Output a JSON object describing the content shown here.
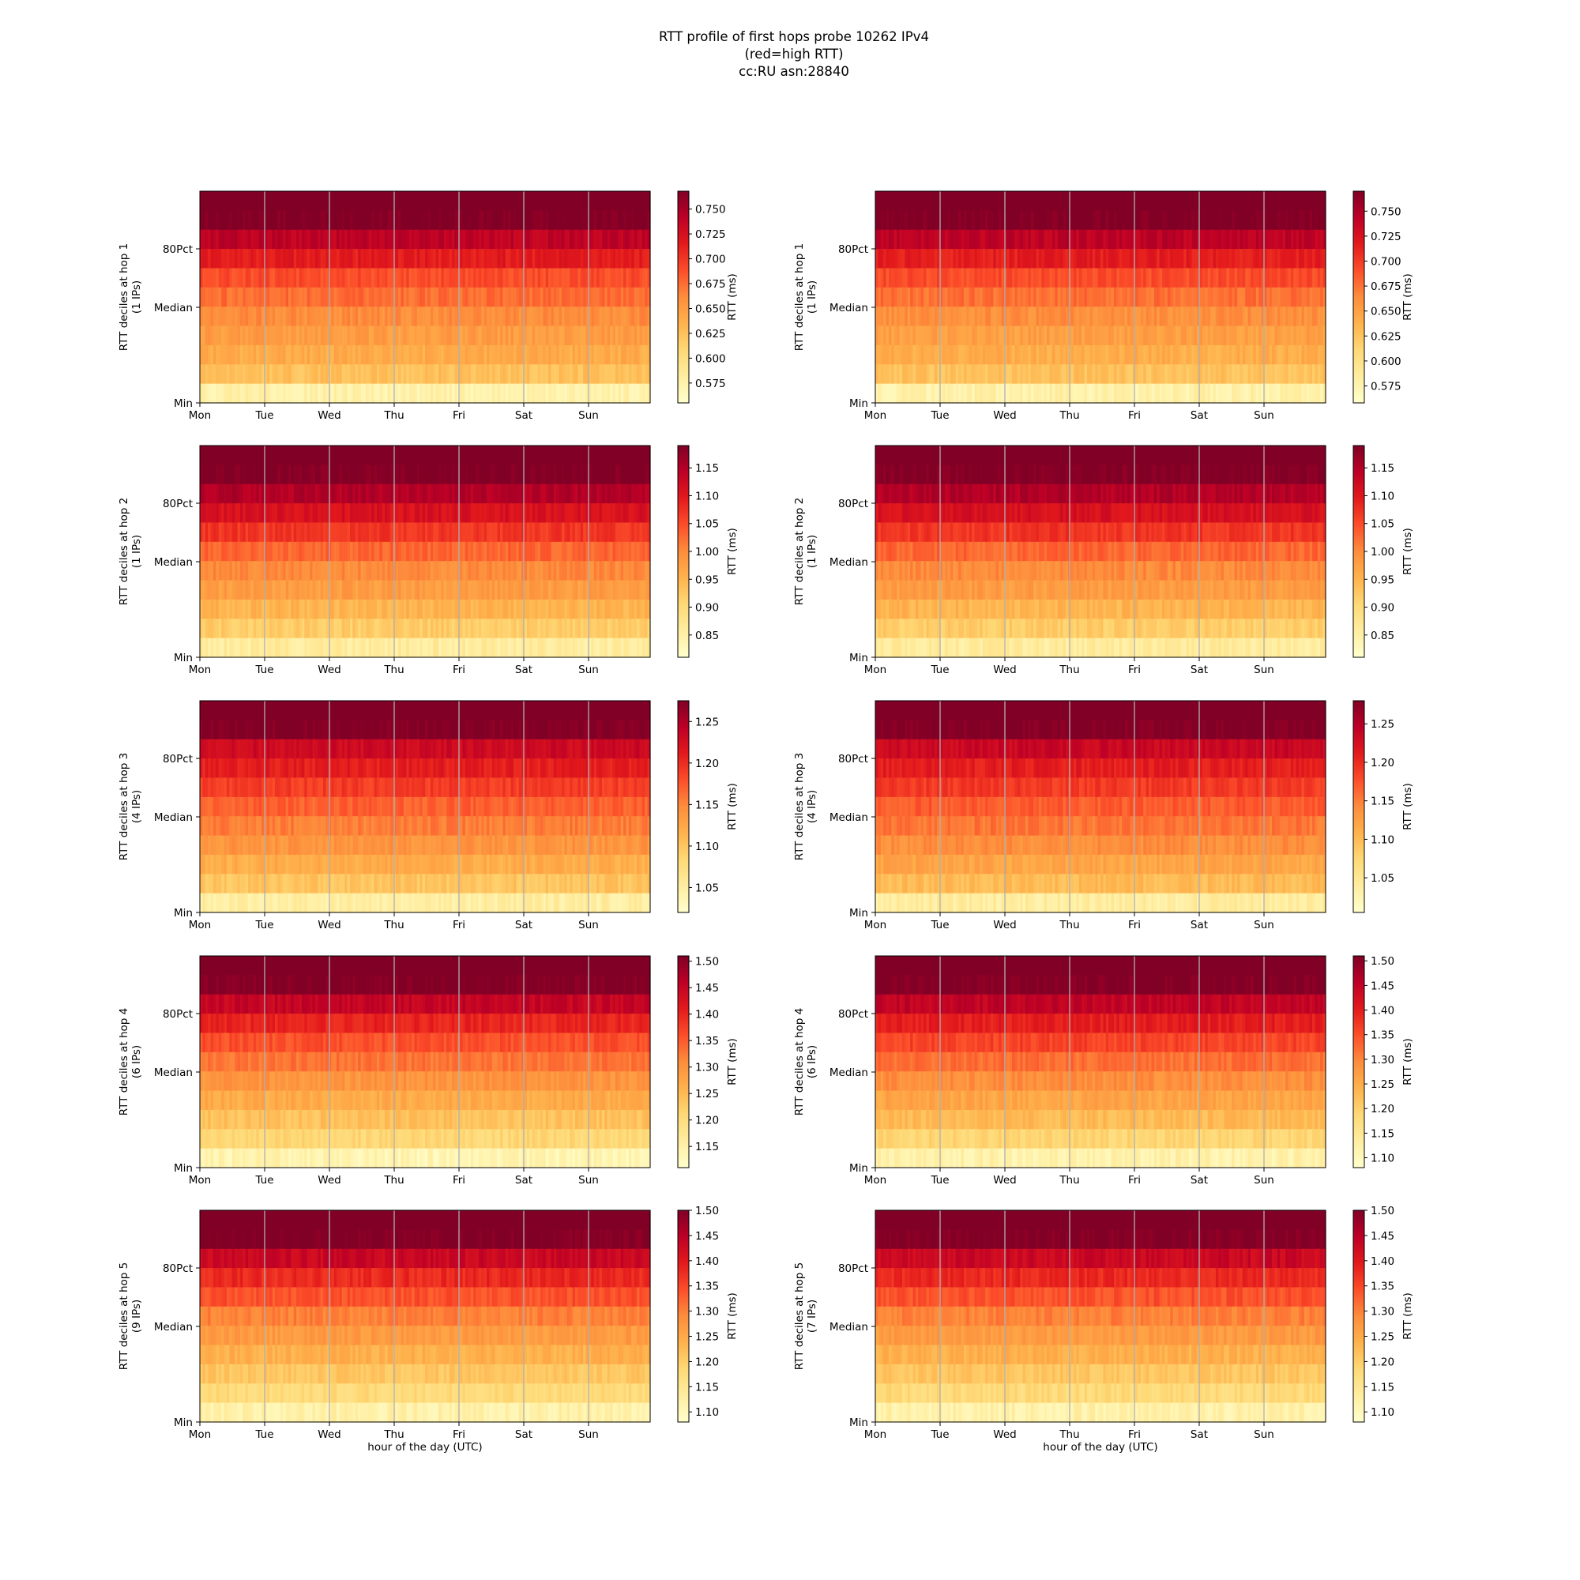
{
  "figure": {
    "title_lines": [
      "RTT profile of first hops probe 10262 IPv4",
      "(red=high RTT)",
      "cc:RU asn:28840"
    ],
    "xlabel": "hour of the day (UTC)",
    "colormap": "YlOrRd",
    "colormap_stops": [
      "#ffffcc",
      "#ffeda0",
      "#fed976",
      "#feb24c",
      "#fd8d3c",
      "#fc4e2a",
      "#e31a1c",
      "#bd0026",
      "#800026"
    ],
    "grid_color": "#b0b0b0"
  },
  "chart_data": [
    {
      "type": "heatmap",
      "column": "left",
      "ylabel": "RTT deciles at hop 1",
      "ylabel2": "(1 IPs)",
      "colorbar_label": "RTT (ms)",
      "xticks": [
        "Mon",
        "Tue",
        "Wed",
        "Thu",
        "Fri",
        "Sat",
        "Sun"
      ],
      "yticks": [
        "Min",
        "Median",
        "80Pct"
      ],
      "clim": [
        0.555,
        0.768
      ],
      "cbar_ticks": [
        "0.575",
        "0.600",
        "0.625",
        "0.650",
        "0.675",
        "0.700",
        "0.725",
        "0.750"
      ],
      "decile_rtt_ms": [
        0.575,
        0.625,
        0.64,
        0.65,
        0.66,
        0.675,
        0.69,
        0.715,
        0.74,
        0.768
      ]
    },
    {
      "type": "heatmap",
      "column": "right",
      "ylabel": "RTT deciles at hop 1",
      "ylabel2": "(1 IPs)",
      "colorbar_label": "RTT (ms)",
      "xticks": [
        "Mon",
        "Tue",
        "Wed",
        "Thu",
        "Fri",
        "Sat",
        "Sun"
      ],
      "yticks": [
        "Min",
        "Median",
        "80Pct"
      ],
      "clim": [
        0.558,
        0.77
      ],
      "cbar_ticks": [
        "0.575",
        "0.600",
        "0.625",
        "0.650",
        "0.675",
        "0.700",
        "0.725",
        "0.750"
      ],
      "decile_rtt_ms": [
        0.578,
        0.627,
        0.641,
        0.651,
        0.661,
        0.676,
        0.692,
        0.716,
        0.742,
        0.77
      ]
    },
    {
      "type": "heatmap",
      "column": "left",
      "ylabel": "RTT deciles at hop 2",
      "ylabel2": "(1 IPs)",
      "colorbar_label": "RTT (ms)",
      "xticks": [
        "Mon",
        "Tue",
        "Wed",
        "Thu",
        "Fri",
        "Sat",
        "Sun"
      ],
      "yticks": [
        "Min",
        "Median",
        "80Pct"
      ],
      "clim": [
        0.81,
        1.19
      ],
      "cbar_ticks": [
        "0.85",
        "0.90",
        "0.95",
        "1.00",
        "1.05",
        "1.10",
        "1.15"
      ],
      "decile_rtt_ms": [
        0.86,
        0.92,
        0.95,
        0.98,
        1.0,
        1.03,
        1.07,
        1.11,
        1.15,
        1.19
      ]
    },
    {
      "type": "heatmap",
      "column": "right",
      "ylabel": "RTT deciles at hop 2",
      "ylabel2": "(1 IPs)",
      "colorbar_label": "RTT (ms)",
      "xticks": [
        "Mon",
        "Tue",
        "Wed",
        "Thu",
        "Fri",
        "Sat",
        "Sun"
      ],
      "yticks": [
        "Min",
        "Median",
        "80Pct"
      ],
      "clim": [
        0.81,
        1.19
      ],
      "cbar_ticks": [
        "0.85",
        "0.90",
        "0.95",
        "1.00",
        "1.05",
        "1.10",
        "1.15"
      ],
      "decile_rtt_ms": [
        0.86,
        0.92,
        0.95,
        0.98,
        1.0,
        1.03,
        1.07,
        1.11,
        1.15,
        1.19
      ]
    },
    {
      "type": "heatmap",
      "column": "left",
      "ylabel": "RTT deciles at hop 3",
      "ylabel2": "(4 IPs)",
      "colorbar_label": "RTT (ms)",
      "xticks": [
        "Mon",
        "Tue",
        "Wed",
        "Thu",
        "Fri",
        "Sat",
        "Sun"
      ],
      "yticks": [
        "Min",
        "Median",
        "80Pct"
      ],
      "clim": [
        1.02,
        1.275
      ],
      "cbar_ticks": [
        "1.05",
        "1.10",
        "1.15",
        "1.20",
        "1.25"
      ],
      "decile_rtt_ms": [
        1.05,
        1.1,
        1.12,
        1.14,
        1.155,
        1.17,
        1.19,
        1.21,
        1.23,
        1.275
      ]
    },
    {
      "type": "heatmap",
      "column": "right",
      "ylabel": "RTT deciles at hop 3",
      "ylabel2": "(4 IPs)",
      "colorbar_label": "RTT (ms)",
      "xticks": [
        "Mon",
        "Tue",
        "Wed",
        "Thu",
        "Fri",
        "Sat",
        "Sun"
      ],
      "yticks": [
        "Min",
        "Median",
        "80Pct"
      ],
      "clim": [
        1.005,
        1.28
      ],
      "cbar_ticks": [
        "1.05",
        "1.10",
        "1.15",
        "1.20",
        "1.25"
      ],
      "decile_rtt_ms": [
        1.04,
        1.1,
        1.12,
        1.14,
        1.155,
        1.17,
        1.19,
        1.21,
        1.235,
        1.28
      ]
    },
    {
      "type": "heatmap",
      "column": "left",
      "ylabel": "RTT deciles at hop 4",
      "ylabel2": "(6 IPs)",
      "colorbar_label": "RTT (ms)",
      "xticks": [
        "Mon",
        "Tue",
        "Wed",
        "Thu",
        "Fri",
        "Sat",
        "Sun"
      ],
      "yticks": [
        "Min",
        "Median",
        "80Pct"
      ],
      "clim": [
        1.11,
        1.51
      ],
      "cbar_ticks": [
        "1.15",
        "1.20",
        "1.25",
        "1.30",
        "1.35",
        "1.40",
        "1.45",
        "1.50"
      ],
      "decile_rtt_ms": [
        1.14,
        1.21,
        1.24,
        1.27,
        1.3,
        1.33,
        1.36,
        1.4,
        1.45,
        1.51
      ]
    },
    {
      "type": "heatmap",
      "column": "right",
      "ylabel": "RTT deciles at hop 4",
      "ylabel2": "(6 IPs)",
      "colorbar_label": "RTT (ms)",
      "xticks": [
        "Mon",
        "Tue",
        "Wed",
        "Thu",
        "Fri",
        "Sat",
        "Sun"
      ],
      "yticks": [
        "Min",
        "Median",
        "80Pct"
      ],
      "clim": [
        1.08,
        1.51
      ],
      "cbar_ticks": [
        "1.10",
        "1.15",
        "1.20",
        "1.25",
        "1.30",
        "1.35",
        "1.40",
        "1.45",
        "1.50"
      ],
      "decile_rtt_ms": [
        1.12,
        1.19,
        1.23,
        1.26,
        1.29,
        1.32,
        1.36,
        1.4,
        1.45,
        1.51
      ]
    },
    {
      "type": "heatmap",
      "column": "left",
      "ylabel": "RTT deciles at hop 5",
      "ylabel2": "(9 IPs)",
      "colorbar_label": "RTT (ms)",
      "xticks": [
        "Mon",
        "Tue",
        "Wed",
        "Thu",
        "Fri",
        "Sat",
        "Sun"
      ],
      "yticks": [
        "Min",
        "Median",
        "80Pct"
      ],
      "clim": [
        1.08,
        1.5
      ],
      "cbar_ticks": [
        "1.10",
        "1.15",
        "1.20",
        "1.25",
        "1.30",
        "1.35",
        "1.40",
        "1.45",
        "1.50"
      ],
      "decile_rtt_ms": [
        1.12,
        1.18,
        1.21,
        1.24,
        1.27,
        1.3,
        1.34,
        1.38,
        1.43,
        1.5
      ]
    },
    {
      "type": "heatmap",
      "column": "right",
      "ylabel": "RTT deciles at hop 5",
      "ylabel2": "(7 IPs)",
      "colorbar_label": "RTT (ms)",
      "xticks": [
        "Mon",
        "Tue",
        "Wed",
        "Thu",
        "Fri",
        "Sat",
        "Sun"
      ],
      "yticks": [
        "Min",
        "Median",
        "80Pct"
      ],
      "clim": [
        1.08,
        1.5
      ],
      "cbar_ticks": [
        "1.10",
        "1.15",
        "1.20",
        "1.25",
        "1.30",
        "1.35",
        "1.40",
        "1.45",
        "1.50"
      ],
      "decile_rtt_ms": [
        1.12,
        1.18,
        1.21,
        1.24,
        1.27,
        1.3,
        1.34,
        1.38,
        1.43,
        1.5
      ]
    }
  ]
}
